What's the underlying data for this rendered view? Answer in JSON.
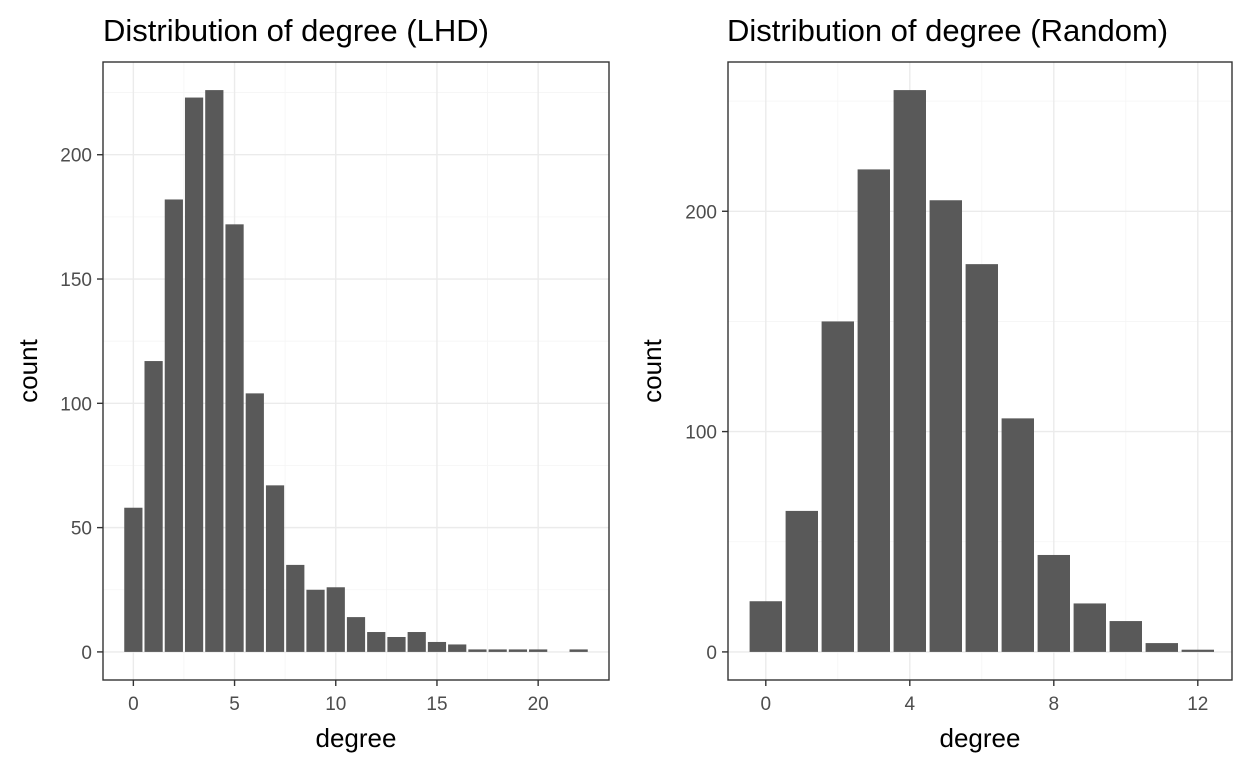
{
  "chart_data": [
    {
      "type": "bar",
      "title": "Distribution of degree (LHD)",
      "xlabel": "degree",
      "ylabel": "count",
      "x": [
        0,
        1,
        2,
        3,
        4,
        5,
        6,
        7,
        8,
        9,
        10,
        11,
        12,
        13,
        14,
        15,
        16,
        17,
        18,
        19,
        20,
        22
      ],
      "values": [
        58,
        117,
        182,
        223,
        226,
        172,
        104,
        67,
        35,
        25,
        26,
        14,
        8,
        6,
        8,
        4,
        3,
        1,
        1,
        1,
        1,
        1
      ],
      "xlim": [
        -1.5,
        23.5
      ],
      "ylim": [
        -11.3,
        237.3
      ],
      "xticks": [
        0,
        5,
        10,
        15,
        20
      ],
      "yticks": [
        0,
        50,
        100,
        150,
        200
      ],
      "bar_color": "#595959",
      "grid": true
    },
    {
      "type": "bar",
      "title": "Distribution of degree (Random)",
      "xlabel": "degree",
      "ylabel": "count",
      "x": [
        0,
        1,
        2,
        3,
        4,
        5,
        6,
        7,
        8,
        9,
        10,
        11,
        12
      ],
      "values": [
        23,
        64,
        150,
        219,
        255,
        205,
        176,
        106,
        44,
        22,
        14,
        4,
        1
      ],
      "xlim": [
        -1.05,
        12.95
      ],
      "ylim": [
        -12.75,
        267.75
      ],
      "xticks": [
        0,
        4,
        8,
        12
      ],
      "yticks": [
        0,
        100,
        200
      ],
      "bar_color": "#595959",
      "grid": true
    }
  ]
}
